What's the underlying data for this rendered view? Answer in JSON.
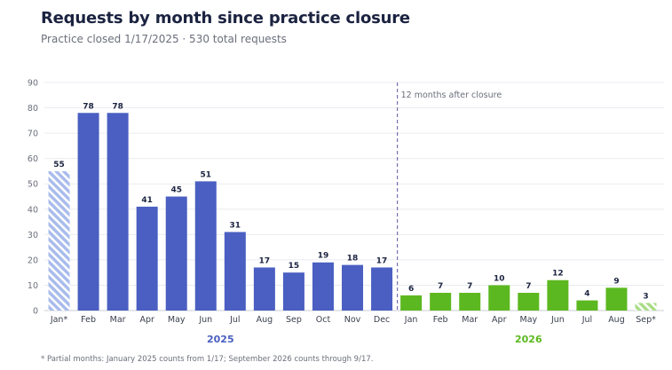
{
  "title": "Requests by month since practice closure",
  "subtitle": "Practice closed 1/17/2025  ·  530 total requests",
  "footnote": "* Partial months: January 2025 counts from 1/17; September 2026 counts through 9/17.",
  "colors": {
    "blue": "#4a5fc1",
    "blue_partial": "#a9bcec",
    "green": "#5cb820",
    "green_partial": "#aadc86",
    "label": "#1b2340",
    "grid": "#e9ebf0",
    "axis_text": "#6b6f7b",
    "divider": "#7a6fb0"
  },
  "chart_data": {
    "type": "bar",
    "ylim": [
      0,
      90
    ],
    "yticks": [
      0,
      10,
      20,
      30,
      40,
      50,
      60,
      70,
      80,
      90
    ],
    "grid": true,
    "groups": [
      {
        "name": "2025",
        "color": "#4a5fc1",
        "categories": [
          "Jan*",
          "Feb",
          "Mar",
          "Apr",
          "May",
          "Jun",
          "Jul",
          "Aug",
          "Sep",
          "Oct",
          "Nov",
          "Dec"
        ],
        "values": [
          55,
          78,
          78,
          41,
          45,
          51,
          31,
          17,
          15,
          19,
          18,
          17
        ],
        "partial": [
          true,
          false,
          false,
          false,
          false,
          false,
          false,
          false,
          false,
          false,
          false,
          false
        ]
      },
      {
        "name": "2026",
        "color": "#5cb820",
        "categories": [
          "Jan",
          "Feb",
          "Mar",
          "Apr",
          "May",
          "Jun",
          "Jul",
          "Aug",
          "Sep*"
        ],
        "values": [
          6,
          7,
          7,
          10,
          7,
          12,
          4,
          9,
          3
        ],
        "partial": [
          false,
          false,
          false,
          false,
          false,
          false,
          false,
          false,
          true
        ]
      }
    ],
    "annotation": "12 months after closure"
  }
}
